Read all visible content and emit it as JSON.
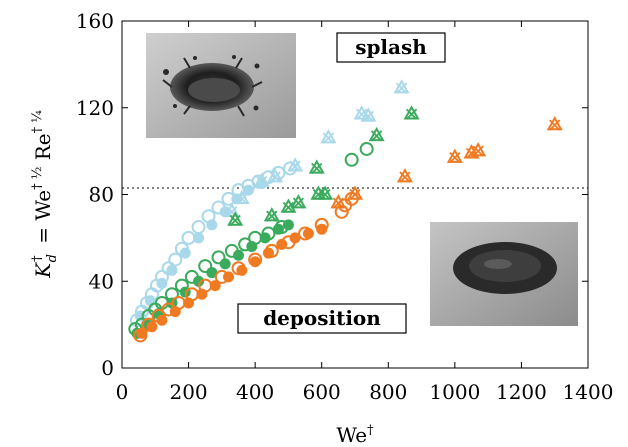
{
  "chart_data": {
    "type": "scatter",
    "xlabel": "We†",
    "ylabel": "K†d = We†½ Re†¼",
    "xlim": [
      0,
      1400
    ],
    "ylim": [
      0,
      160
    ],
    "xticks": [
      "0",
      "200",
      "400",
      "600",
      "800",
      "1000",
      "1200",
      "1400"
    ],
    "yticks": [
      "0",
      "40",
      "80",
      "120",
      "160"
    ],
    "grid": false,
    "threshold": 83,
    "annotations": {
      "splash": "splash",
      "deposition": "deposition"
    },
    "colors": {
      "light_blue": "#a8d8ea",
      "green": "#3aaa5c",
      "orange": "#f07a22"
    },
    "series": [
      {
        "color": "light_blue",
        "marker": "circle-open",
        "points": [
          [
            45,
            22
          ],
          [
            60,
            26
          ],
          [
            75,
            30
          ],
          [
            90,
            34
          ],
          [
            105,
            38
          ],
          [
            120,
            42
          ],
          [
            140,
            46
          ],
          [
            160,
            50
          ],
          [
            180,
            55
          ],
          [
            200,
            60
          ],
          [
            230,
            65
          ],
          [
            260,
            70
          ],
          [
            290,
            74
          ],
          [
            320,
            78
          ],
          [
            350,
            82
          ],
          [
            380,
            84
          ],
          [
            410,
            86
          ],
          [
            440,
            88
          ],
          [
            470,
            90
          ],
          [
            505,
            92
          ]
        ]
      },
      {
        "color": "light_blue",
        "marker": "circle-filled",
        "points": [
          [
            55,
            24
          ],
          [
            85,
            31
          ],
          [
            120,
            39
          ],
          [
            150,
            45
          ],
          [
            190,
            53
          ],
          [
            230,
            60
          ],
          [
            270,
            66
          ],
          [
            310,
            72
          ],
          [
            345,
            78
          ],
          [
            380,
            82
          ],
          [
            420,
            85
          ]
        ]
      },
      {
        "color": "light_blue",
        "marker": "triangle-cross",
        "points": [
          [
            330,
            72
          ],
          [
            360,
            78
          ],
          [
            420,
            86
          ],
          [
            460,
            88
          ],
          [
            520,
            93
          ],
          [
            620,
            106
          ],
          [
            720,
            117
          ],
          [
            740,
            116
          ],
          [
            840,
            129
          ]
        ]
      },
      {
        "color": "green",
        "marker": "circle-open",
        "points": [
          [
            40,
            18
          ],
          [
            60,
            20
          ],
          [
            80,
            24
          ],
          [
            100,
            27
          ],
          [
            120,
            30
          ],
          [
            150,
            34
          ],
          [
            180,
            38
          ],
          [
            210,
            42
          ],
          [
            250,
            47
          ],
          [
            290,
            51
          ],
          [
            330,
            54
          ],
          [
            370,
            57
          ],
          [
            400,
            60
          ],
          [
            440,
            62
          ],
          [
            480,
            65
          ],
          [
            690,
            96
          ],
          [
            735,
            101
          ]
        ]
      },
      {
        "color": "green",
        "marker": "circle-filled",
        "points": [
          [
            45,
            16
          ],
          [
            75,
            20
          ],
          [
            110,
            25
          ],
          [
            150,
            30
          ],
          [
            190,
            35
          ],
          [
            230,
            40
          ],
          [
            270,
            44
          ],
          [
            310,
            48
          ],
          [
            350,
            52
          ],
          [
            390,
            56
          ],
          [
            430,
            60
          ],
          [
            470,
            64
          ],
          [
            500,
            66
          ]
        ]
      },
      {
        "color": "green",
        "marker": "triangle-cross",
        "points": [
          [
            340,
            68
          ],
          [
            450,
            70
          ],
          [
            500,
            74
          ],
          [
            530,
            76
          ],
          [
            590,
            80
          ],
          [
            610,
            80
          ],
          [
            765,
            107
          ],
          [
            870,
            117
          ],
          [
            585,
            92
          ]
        ]
      },
      {
        "color": "orange",
        "marker": "circle-open",
        "points": [
          [
            55,
            15
          ],
          [
            80,
            20
          ],
          [
            110,
            24
          ],
          [
            140,
            27
          ],
          [
            170,
            30
          ],
          [
            210,
            34
          ],
          [
            250,
            38
          ],
          [
            300,
            42
          ],
          [
            350,
            46
          ],
          [
            400,
            50
          ],
          [
            450,
            54
          ],
          [
            500,
            58
          ],
          [
            550,
            62
          ],
          [
            600,
            66
          ],
          [
            660,
            72
          ],
          [
            670,
            75
          ],
          [
            690,
            78
          ]
        ]
      },
      {
        "color": "orange",
        "marker": "circle-filled",
        "points": [
          [
            60,
            16
          ],
          [
            90,
            19
          ],
          [
            120,
            22
          ],
          [
            160,
            26
          ],
          [
            200,
            30
          ],
          [
            240,
            34
          ],
          [
            280,
            38
          ],
          [
            320,
            42
          ],
          [
            360,
            45
          ],
          [
            400,
            49
          ],
          [
            440,
            53
          ],
          [
            480,
            57
          ],
          [
            520,
            60
          ],
          [
            560,
            62
          ],
          [
            600,
            64
          ]
        ]
      },
      {
        "color": "orange",
        "marker": "triangle-cross",
        "points": [
          [
            650,
            76
          ],
          [
            700,
            80
          ],
          [
            850,
            88
          ],
          [
            1000,
            97
          ],
          [
            1050,
            99
          ],
          [
            1070,
            100
          ],
          [
            1300,
            112
          ]
        ]
      }
    ]
  }
}
